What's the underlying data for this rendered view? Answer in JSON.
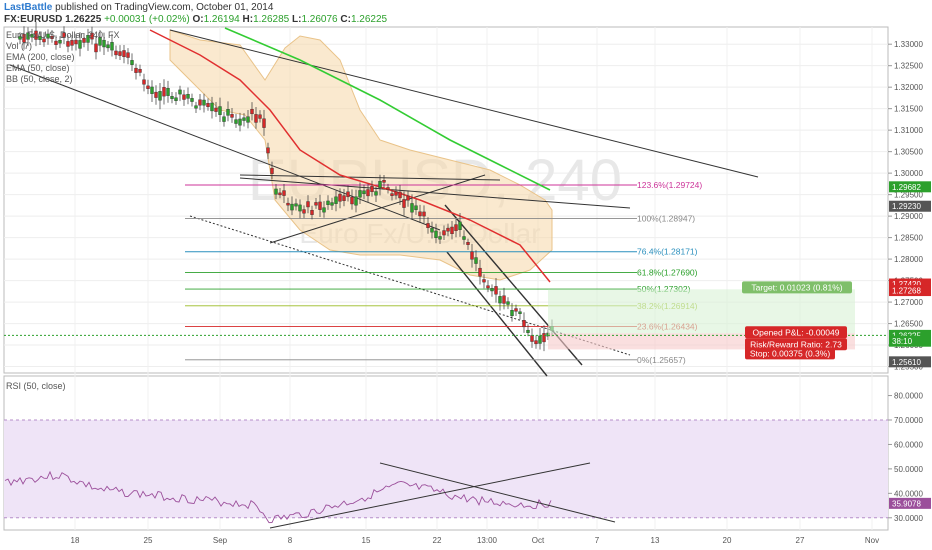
{
  "header": {
    "author": "LastBattle",
    "published": "published on TradingView.com, October 01, 2014",
    "symbol": "FX:EURUSD",
    "last": "1.26225",
    "change": "+0.00031 (+0.02%)",
    "o_label": "O:",
    "o": "1.26194",
    "h_label": "H:",
    "h": "1.26285",
    "l_label": "L:",
    "l": "1.26076",
    "c_label": "C:",
    "c": "1.26225"
  },
  "legend": {
    "title": "Euro Fx/U.S. Dollar, 240, FX",
    "items": [
      "Vol (7)",
      "EMA (200, close)",
      "EMA (50, close)",
      "BB (50, close, 2)"
    ],
    "rsi": "RSI (50, close)"
  },
  "watermark": {
    "symbol": "EURUSD, 240",
    "name": "Euro Fx/U.S. Dollar"
  },
  "colors": {
    "up": "#2ca02c",
    "down": "#d62728",
    "ema200": "#33cc33",
    "ema50": "#e03030",
    "bb_fill": "#f6d7a8",
    "rsi_band": "#efe4f7",
    "rsi_line": "#9b4f9b"
  },
  "chart_data": [
    {
      "type": "candlestick",
      "price_axis": {
        "ticks": [
          "1.33000",
          "1.32500",
          "1.32000",
          "1.31500",
          "1.31000",
          "1.30500",
          "1.30000",
          "1.29500",
          "1.29000",
          "1.28500",
          "1.28000",
          "1.27500",
          "1.27000",
          "1.26500",
          "1.26000",
          "1.25500"
        ],
        "range": [
          1.2535,
          1.334
        ]
      },
      "time_axis": {
        "ticks": [
          "18",
          "25",
          "Sep",
          "8",
          "15",
          "22",
          "13:00",
          "Oct",
          "7",
          "13",
          "20",
          "27",
          "Nov"
        ]
      },
      "price_labels": [
        {
          "value": "1.29682",
          "bg": "#2ca02c",
          "price": 1.29682
        },
        {
          "value": "1.29230",
          "bg": "#555555",
          "price": 1.2923
        },
        {
          "value": "1.27420",
          "bg": "#d62728",
          "price": 1.2742
        },
        {
          "value": "1.27268",
          "bg": "#d62728",
          "price": 1.27268
        },
        {
          "value": "1.26225",
          "bg": "#2ca02c",
          "price": 1.26225
        },
        {
          "value": "38:10",
          "bg": "#2ca02c",
          "price": 1.2609
        },
        {
          "value": "1.25610",
          "bg": "#555555",
          "price": 1.2561
        }
      ],
      "fib_levels": [
        {
          "label": "123.6%(1.29724)",
          "price": 1.29724,
          "color": "#cc3399"
        },
        {
          "label": "100%(1.28947)",
          "price": 1.28947,
          "color": "#888888"
        },
        {
          "label": "76.4%(1.28171)",
          "price": 1.28171,
          "color": "#2a8fbd"
        },
        {
          "label": "61.8%(1.27690)",
          "price": 1.2769,
          "color": "#2ca02c"
        },
        {
          "label": "50%(1.27302)",
          "price": 1.27302,
          "color": "#2ca02c"
        },
        {
          "label": "38.2%(1.26914)",
          "price": 1.26914,
          "color": "#99bb22"
        },
        {
          "label": "23.6%(1.26434)",
          "price": 1.26434,
          "color": "#d62728"
        },
        {
          "label": "0%(1.25657)",
          "price": 1.25657,
          "color": "#888888"
        }
      ],
      "position": {
        "target": "Target: 0.01023 (0.81%)",
        "opened": "Opened P&L: -0.00049",
        "ratio": "Risk/Reward Ratio: 2.73",
        "stop": "Stop: 0.00375 (0.3%)",
        "entry": 1.26274,
        "target_price": 1.27297,
        "stop_price": 1.25899
      }
    },
    {
      "type": "line",
      "name": "RSI (50, close)",
      "axis_ticks": [
        "80.0000",
        "70.0000",
        "60.0000",
        "50.0000",
        "40.0000",
        "30.0000"
      ],
      "band": [
        30,
        70
      ],
      "range": [
        25,
        88
      ],
      "last_label": "35.9078",
      "last": 35.9
    }
  ]
}
